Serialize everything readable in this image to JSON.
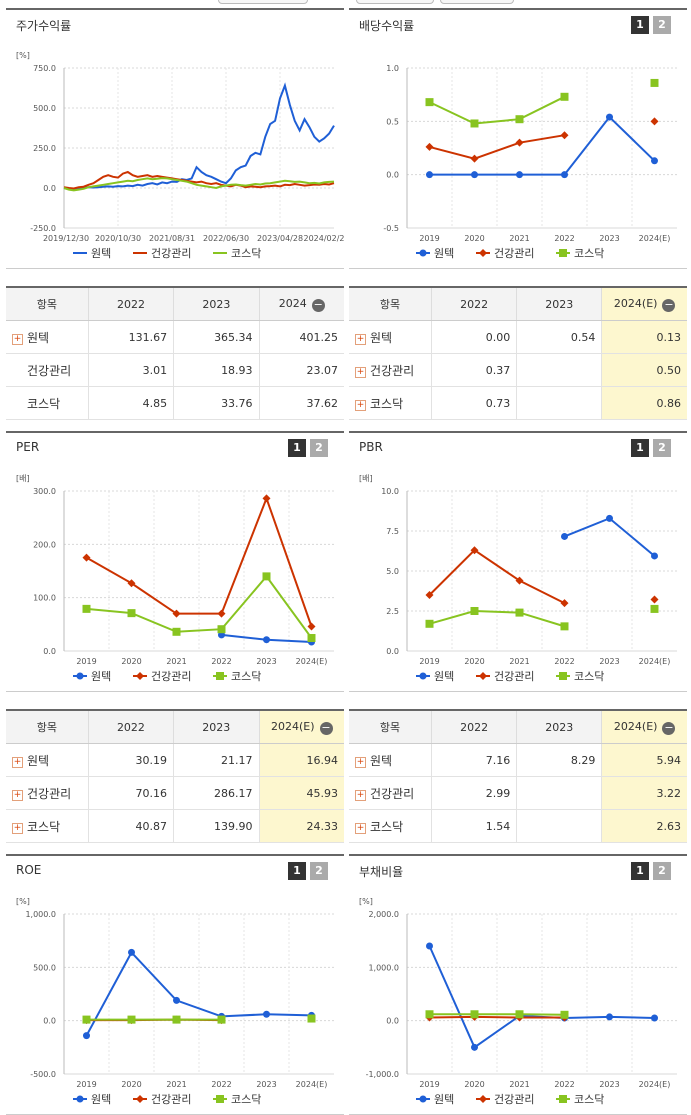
{
  "charts": [
    {
      "id": "stock_return",
      "title": "주가수익률",
      "unit": "[%]",
      "type": "line",
      "show_pager": false,
      "ylim": [
        -250,
        750
      ],
      "y_ticks": [
        {
          "v": 750,
          "label": "750.0"
        },
        {
          "v": 500,
          "label": "500.0"
        },
        {
          "v": 250,
          "label": "250.0"
        },
        {
          "v": 0,
          "label": "0.0"
        },
        {
          "v": -250,
          "label": "-250.0"
        }
      ],
      "x_ticks": [
        "2019/12/30",
        "2020/10/30",
        "2021/08/31",
        "2022/06/30",
        "2023/04/28",
        "2024/02/2"
      ],
      "legend": [
        {
          "name": "원텍",
          "color": "#1f5fd6"
        },
        {
          "name": "건강관리",
          "color": "#cc3300"
        },
        {
          "name": "코스닥",
          "color": "#88c420"
        }
      ],
      "series": [
        {
          "name": "원텍",
          "color": "#1f5fd6",
          "values": [
            0,
            -5,
            -8,
            -5,
            0,
            5,
            3,
            5,
            8,
            10,
            8,
            12,
            10,
            15,
            12,
            20,
            15,
            25,
            30,
            22,
            35,
            30,
            40,
            38,
            55,
            50,
            60,
            130,
            100,
            80,
            70,
            55,
            40,
            30,
            60,
            110,
            130,
            140,
            200,
            220,
            210,
            320,
            400,
            420,
            560,
            640,
            520,
            420,
            360,
            430,
            380,
            320,
            290,
            310,
            340,
            390
          ]
        },
        {
          "name": "건강관리",
          "color": "#cc3300",
          "values": [
            5,
            0,
            -3,
            5,
            8,
            20,
            30,
            50,
            70,
            80,
            70,
            65,
            90,
            100,
            80,
            70,
            75,
            80,
            70,
            75,
            70,
            65,
            60,
            55,
            50,
            45,
            40,
            35,
            40,
            30,
            25,
            30,
            20,
            15,
            10,
            20,
            15,
            5,
            10,
            8,
            5,
            10,
            12,
            15,
            10,
            20,
            18,
            25,
            20,
            15,
            18,
            22,
            20,
            25,
            22,
            30
          ]
        },
        {
          "name": "코스닥",
          "color": "#88c420",
          "values": [
            0,
            -10,
            -15,
            -10,
            -5,
            5,
            10,
            15,
            20,
            25,
            30,
            35,
            40,
            45,
            42,
            50,
            55,
            60,
            55,
            58,
            62,
            60,
            55,
            50,
            45,
            40,
            30,
            20,
            15,
            10,
            5,
            0,
            10,
            15,
            20,
            22,
            18,
            15,
            20,
            25,
            22,
            28,
            30,
            35,
            40,
            45,
            42,
            38,
            40,
            35,
            30,
            32,
            28,
            35,
            38,
            40
          ]
        }
      ]
    },
    {
      "id": "dividend",
      "title": "배당수익률",
      "unit": "",
      "type": "line",
      "show_pager": true,
      "ylim": [
        -0.5,
        1.0
      ],
      "y_ticks": [
        {
          "v": 1.0,
          "label": "1.0"
        },
        {
          "v": 0.5,
          "label": "0.5"
        },
        {
          "v": 0,
          "label": "0.0"
        },
        {
          "v": -0.5,
          "label": "-0.5"
        }
      ],
      "categories": [
        "2019",
        "2020",
        "2021",
        "2022",
        "2023",
        "2024(E)"
      ],
      "legend": [
        {
          "name": "원텍",
          "color": "#1f5fd6"
        },
        {
          "name": "건강관리",
          "color": "#cc3300"
        },
        {
          "name": "코스닥",
          "color": "#88c420"
        }
      ],
      "series": [
        {
          "name": "원텍",
          "color": "#1f5fd6",
          "marker": "circle",
          "values": [
            0.0,
            0.0,
            0.0,
            0.0,
            0.54,
            0.13
          ]
        },
        {
          "name": "건강관리",
          "color": "#cc3300",
          "marker": "diamond",
          "values": [
            0.26,
            0.15,
            0.3,
            0.37,
            null,
            0.5
          ]
        },
        {
          "name": "코스닥",
          "color": "#88c420",
          "marker": "square",
          "values": [
            0.68,
            0.48,
            0.52,
            0.73,
            null,
            0.86
          ]
        }
      ]
    },
    {
      "id": "per",
      "title": "PER",
      "unit": "[배]",
      "type": "line",
      "show_pager": true,
      "ylim": [
        0,
        300
      ],
      "y_ticks": [
        {
          "v": 300,
          "label": "300.0"
        },
        {
          "v": 200,
          "label": "200.0"
        },
        {
          "v": 100,
          "label": "100.0"
        },
        {
          "v": 0,
          "label": "0.0"
        }
      ],
      "categories": [
        "2019",
        "2020",
        "2021",
        "2022",
        "2023",
        "2024(E)"
      ],
      "legend": [
        {
          "name": "원텍",
          "color": "#1f5fd6"
        },
        {
          "name": "건강관리",
          "color": "#cc3300"
        },
        {
          "name": "코스닥",
          "color": "#88c420"
        }
      ],
      "series": [
        {
          "name": "원텍",
          "color": "#1f5fd6",
          "marker": "circle",
          "values": [
            null,
            null,
            null,
            30.19,
            21.17,
            16.94
          ]
        },
        {
          "name": "건강관리",
          "color": "#cc3300",
          "marker": "diamond",
          "values": [
            175,
            127,
            70,
            70.16,
            286.17,
            45.93
          ]
        },
        {
          "name": "코스닥",
          "color": "#88c420",
          "marker": "square",
          "values": [
            79,
            71,
            36,
            40.87,
            139.9,
            24.33
          ]
        }
      ]
    },
    {
      "id": "pbr",
      "title": "PBR",
      "unit": "[배]",
      "type": "line",
      "show_pager": true,
      "ylim": [
        0,
        10
      ],
      "y_ticks": [
        {
          "v": 10,
          "label": "10.0"
        },
        {
          "v": 7.5,
          "label": "7.5"
        },
        {
          "v": 5,
          "label": "5.0"
        },
        {
          "v": 2.5,
          "label": "2.5"
        },
        {
          "v": 0,
          "label": "0.0"
        }
      ],
      "categories": [
        "2019",
        "2020",
        "2021",
        "2022",
        "2023",
        "2024(E)"
      ],
      "legend": [
        {
          "name": "원텍",
          "color": "#1f5fd6"
        },
        {
          "name": "건강관리",
          "color": "#cc3300"
        },
        {
          "name": "코스닥",
          "color": "#88c420"
        }
      ],
      "series": [
        {
          "name": "원텍",
          "color": "#1f5fd6",
          "marker": "circle",
          "values": [
            null,
            null,
            null,
            7.16,
            8.29,
            5.94
          ]
        },
        {
          "name": "건강관리",
          "color": "#cc3300",
          "marker": "diamond",
          "values": [
            3.5,
            6.3,
            4.4,
            2.99,
            null,
            3.22
          ]
        },
        {
          "name": "코스닥",
          "color": "#88c420",
          "marker": "square",
          "values": [
            1.7,
            2.5,
            2.4,
            1.54,
            null,
            2.63
          ]
        }
      ]
    },
    {
      "id": "roe",
      "title": "ROE",
      "unit": "[%]",
      "type": "line",
      "show_pager": true,
      "ylim": [
        -500,
        1000
      ],
      "y_ticks": [
        {
          "v": 1000,
          "label": "1,000.0"
        },
        {
          "v": 500,
          "label": "500.0"
        },
        {
          "v": 0,
          "label": "0.0"
        },
        {
          "v": -500,
          "label": "-500.0"
        }
      ],
      "categories": [
        "2019",
        "2020",
        "2021",
        "2022",
        "2023",
        "2024(E)"
      ],
      "legend": [
        {
          "name": "원텍",
          "color": "#1f5fd6"
        },
        {
          "name": "건강관리",
          "color": "#cc3300"
        },
        {
          "name": "코스닥",
          "color": "#88c420"
        }
      ],
      "series": [
        {
          "name": "원텍",
          "color": "#1f5fd6",
          "marker": "circle",
          "values": [
            -140,
            640,
            190,
            40,
            60,
            50
          ]
        },
        {
          "name": "건강관리",
          "color": "#cc3300",
          "marker": "diamond",
          "values": [
            5,
            5,
            10,
            5,
            null,
            null
          ]
        },
        {
          "name": "코스닥",
          "color": "#88c420",
          "marker": "square",
          "values": [
            10,
            10,
            10,
            10,
            null,
            20
          ]
        }
      ]
    },
    {
      "id": "debt",
      "title": "부채비율",
      "unit": "[%]",
      "type": "line",
      "show_pager": true,
      "ylim": [
        -1000,
        2000
      ],
      "y_ticks": [
        {
          "v": 2000,
          "label": "2,000.0"
        },
        {
          "v": 1000,
          "label": "1,000.0"
        },
        {
          "v": 0,
          "label": "0.0"
        },
        {
          "v": -1000,
          "label": "-1,000.0"
        }
      ],
      "categories": [
        "2019",
        "2020",
        "2021",
        "2022",
        "2023",
        "2024(E)"
      ],
      "legend": [
        {
          "name": "원텍",
          "color": "#1f5fd6"
        },
        {
          "name": "건강관리",
          "color": "#cc3300"
        },
        {
          "name": "코스닥",
          "color": "#88c420"
        }
      ],
      "series": [
        {
          "name": "원텍",
          "color": "#1f5fd6",
          "marker": "circle",
          "values": [
            1400,
            -500,
            90,
            50,
            70,
            50
          ]
        },
        {
          "name": "건강관리",
          "color": "#cc3300",
          "marker": "diamond",
          "values": [
            60,
            70,
            60,
            60,
            null,
            null
          ]
        },
        {
          "name": "코스닥",
          "color": "#88c420",
          "marker": "square",
          "values": [
            120,
            120,
            120,
            110,
            null,
            null
          ]
        }
      ]
    }
  ],
  "pager": {
    "p1": "1",
    "p2": "2"
  },
  "tables": [
    {
      "id": "t_return",
      "headers": [
        "항목",
        "2022",
        "2023",
        "2024"
      ],
      "highlight_last": false,
      "rows": [
        {
          "label": "원텍",
          "plus": true,
          "values": [
            "131.67",
            "365.34",
            "401.25"
          ]
        },
        {
          "label": "건강관리",
          "plus": false,
          "values": [
            "3.01",
            "18.93",
            "23.07"
          ]
        },
        {
          "label": "코스닥",
          "plus": false,
          "values": [
            "4.85",
            "33.76",
            "37.62"
          ]
        }
      ]
    },
    {
      "id": "t_dividend",
      "headers": [
        "항목",
        "2022",
        "2023",
        "2024(E)"
      ],
      "highlight_last": true,
      "rows": [
        {
          "label": "원텍",
          "plus": true,
          "values": [
            "0.00",
            "0.54",
            "0.13"
          ]
        },
        {
          "label": "건강관리",
          "plus": true,
          "values": [
            "0.37",
            "",
            "0.50"
          ]
        },
        {
          "label": "코스닥",
          "plus": true,
          "values": [
            "0.73",
            "",
            "0.86"
          ]
        }
      ]
    },
    {
      "id": "t_per",
      "headers": [
        "항목",
        "2022",
        "2023",
        "2024(E)"
      ],
      "highlight_last": true,
      "rows": [
        {
          "label": "원텍",
          "plus": true,
          "values": [
            "30.19",
            "21.17",
            "16.94"
          ]
        },
        {
          "label": "건강관리",
          "plus": true,
          "values": [
            "70.16",
            "286.17",
            "45.93"
          ]
        },
        {
          "label": "코스닥",
          "plus": true,
          "values": [
            "40.87",
            "139.90",
            "24.33"
          ]
        }
      ]
    },
    {
      "id": "t_pbr",
      "headers": [
        "항목",
        "2022",
        "2023",
        "2024(E)"
      ],
      "highlight_last": true,
      "rows": [
        {
          "label": "원텍",
          "plus": true,
          "values": [
            "7.16",
            "8.29",
            "5.94"
          ]
        },
        {
          "label": "건강관리",
          "plus": true,
          "values": [
            "2.99",
            "",
            "3.22"
          ]
        },
        {
          "label": "코스닥",
          "plus": true,
          "values": [
            "1.54",
            "",
            "2.63"
          ]
        }
      ]
    }
  ]
}
